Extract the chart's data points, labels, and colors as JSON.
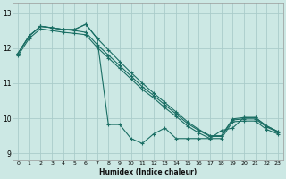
{
  "xlabel": "Humidex (Indice chaleur)",
  "bg_color": "#cce8e4",
  "grid_color": "#aaccca",
  "line_color": "#1a6e64",
  "xlim": [
    -0.5,
    23.5
  ],
  "ylim": [
    8.8,
    13.3
  ],
  "yticks": [
    9,
    10,
    11,
    12,
    13
  ],
  "xticks": [
    0,
    1,
    2,
    3,
    4,
    5,
    6,
    7,
    8,
    9,
    10,
    11,
    12,
    13,
    14,
    15,
    16,
    17,
    18,
    19,
    20,
    21,
    22,
    23
  ],
  "line1_x": [
    0,
    1,
    2,
    3,
    4,
    5,
    6,
    7,
    8,
    9,
    10,
    11,
    12,
    13,
    14,
    15,
    16,
    17,
    18,
    19,
    20,
    21,
    22,
    23
  ],
  "line1_y": [
    11.85,
    12.35,
    12.62,
    12.58,
    12.53,
    12.53,
    12.68,
    12.28,
    11.95,
    11.62,
    11.3,
    11.0,
    10.72,
    10.45,
    10.18,
    9.9,
    9.68,
    9.5,
    9.5,
    9.98,
    10.02,
    10.02,
    9.78,
    9.62
  ],
  "line2_x": [
    0,
    1,
    2,
    3,
    4,
    5,
    6,
    7,
    8,
    9,
    10,
    11,
    12,
    13,
    14,
    15,
    16,
    17,
    18,
    19,
    20,
    21,
    22,
    23
  ],
  "line2_y": [
    11.85,
    12.35,
    12.62,
    12.58,
    12.53,
    12.53,
    12.68,
    12.28,
    9.82,
    9.82,
    9.42,
    9.28,
    9.55,
    9.72,
    9.42,
    9.42,
    9.42,
    9.42,
    9.65,
    9.72,
    10.02,
    10.02,
    9.78,
    9.62
  ],
  "line3_x": [
    0,
    1,
    2,
    3,
    4,
    5,
    6,
    7,
    8,
    9,
    10,
    11,
    12,
    13,
    14,
    15,
    16,
    17,
    18,
    19,
    20,
    21,
    22,
    23
  ],
  "line3_y": [
    11.85,
    12.35,
    12.62,
    12.58,
    12.53,
    12.5,
    12.45,
    12.1,
    11.8,
    11.5,
    11.2,
    10.9,
    10.65,
    10.38,
    10.12,
    9.85,
    9.65,
    9.48,
    9.48,
    9.95,
    9.98,
    9.98,
    9.75,
    9.6
  ],
  "line4_x": [
    0,
    1,
    2,
    3,
    4,
    5,
    6,
    7,
    8,
    9,
    10,
    11,
    12,
    13,
    14,
    15,
    16,
    17,
    18,
    19,
    20,
    21,
    22,
    23
  ],
  "line4_y": [
    11.78,
    12.28,
    12.55,
    12.5,
    12.45,
    12.42,
    12.38,
    12.02,
    11.72,
    11.42,
    11.12,
    10.82,
    10.58,
    10.3,
    10.05,
    9.78,
    9.58,
    9.42,
    9.42,
    9.9,
    9.92,
    9.92,
    9.68,
    9.55
  ]
}
